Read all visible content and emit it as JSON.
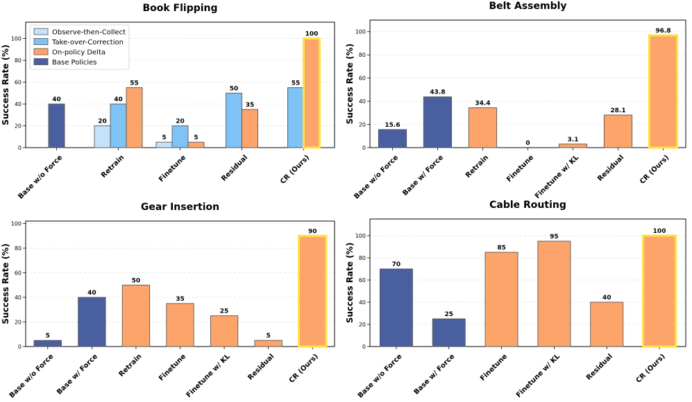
{
  "colors": {
    "base": "#4a5fa0",
    "delta": "#fda46b",
    "takeover": "#7fc3f6",
    "observe": "#c4e2f8",
    "highlight": "#fde241",
    "edge": "#555555",
    "grid": "#dddddd"
  },
  "chart_data": [
    {
      "type": "bar",
      "title": "Book Flipping",
      "ylabel": "Success Rate (%)",
      "ylim": [
        0,
        115
      ],
      "yticks": [
        0,
        20,
        40,
        60,
        80,
        100
      ],
      "grid": "horizontal dashed",
      "legend_placement": "top-left",
      "categories": [
        "Base w/o Force",
        "Retrain",
        "Finetune",
        "Residual",
        "CR (Ours)"
      ],
      "series": [
        {
          "name": "Observe-then-Collect",
          "color_key": "observe",
          "values": [
            null,
            20,
            5,
            null,
            null
          ]
        },
        {
          "name": "Take-over-Correction",
          "color_key": "takeover",
          "values": [
            null,
            40,
            20,
            50,
            55
          ]
        },
        {
          "name": "On-policy Delta",
          "color_key": "delta",
          "values": [
            null,
            55,
            5,
            35,
            100
          ]
        },
        {
          "name": "Base Policies",
          "color_key": "base",
          "values": [
            40,
            null,
            null,
            null,
            null
          ]
        }
      ],
      "data_labels": [
        {
          "category": "Base w/o Force",
          "series": "Base Policies",
          "text": "40"
        },
        {
          "category": "Retrain",
          "series": "Observe-then-Collect",
          "text": "20"
        },
        {
          "category": "Retrain",
          "series": "Take-over-Correction",
          "text": "40"
        },
        {
          "category": "Retrain",
          "series": "On-policy Delta",
          "text": "55"
        },
        {
          "category": "Finetune",
          "series": "Observe-then-Collect",
          "text": "5"
        },
        {
          "category": "Finetune",
          "series": "Take-over-Correction",
          "text": "20"
        },
        {
          "category": "Finetune",
          "series": "On-policy Delta",
          "text": "5"
        },
        {
          "category": "Residual",
          "series": "Take-over-Correction",
          "text": "50"
        },
        {
          "category": "Residual",
          "series": "On-policy Delta",
          "text": "35"
        },
        {
          "category": "CR (Ours)",
          "series": "Take-over-Correction",
          "text": "55"
        },
        {
          "category": "CR (Ours)",
          "series": "On-policy Delta",
          "text": "100"
        }
      ],
      "highlight": {
        "category": "CR (Ours)",
        "series": "On-policy Delta"
      }
    },
    {
      "type": "bar",
      "title": "Belt Assembly",
      "ylabel": "Success Rate (%)",
      "ylim": [
        0,
        110
      ],
      "yticks": [
        0,
        20,
        40,
        60,
        80,
        100
      ],
      "grid": "horizontal dashed",
      "categories": [
        "Base w/o Force",
        "Base w/ Force",
        "Retrain",
        "Finetune",
        "Finetune w/ KL",
        "Residual",
        "CR (Ours)"
      ],
      "values": [
        15.6,
        43.8,
        34.4,
        0,
        3.1,
        28.1,
        96.8
      ],
      "labels": [
        "15.6",
        "43.8",
        "34.4",
        "0",
        "3.1",
        "28.1",
        "96.8"
      ],
      "bar_color_keys": [
        "base",
        "base",
        "delta",
        "delta",
        "delta",
        "delta",
        "delta"
      ],
      "highlight_index": 6
    },
    {
      "type": "bar",
      "title": "Gear Insertion",
      "ylabel": "Success Rate (%)",
      "ylim": [
        0,
        102
      ],
      "yticks": [
        0,
        20,
        40,
        60,
        80,
        100
      ],
      "grid": "horizontal dashed",
      "categories": [
        "Base w/o Force",
        "Base w/ Force",
        "Retrain",
        "Finetune",
        "Finetune w/ KL",
        "Residual",
        "CR (Ours)"
      ],
      "values": [
        5,
        40,
        50,
        35,
        25,
        5,
        90
      ],
      "labels": [
        "5",
        "40",
        "50",
        "35",
        "25",
        "5",
        "90"
      ],
      "bar_color_keys": [
        "base",
        "base",
        "delta",
        "delta",
        "delta",
        "delta",
        "delta"
      ],
      "highlight_index": 6
    },
    {
      "type": "bar",
      "title": "Cable Routing",
      "ylabel": "Success Rate (%)",
      "ylim": [
        0,
        115
      ],
      "yticks": [
        0,
        20,
        40,
        60,
        80,
        100
      ],
      "grid": "horizontal dashed",
      "categories": [
        "Base w/o Force",
        "Base w/ Force",
        "Finetune",
        "Finetune w/ KL",
        "Residual",
        "CR (Ours)"
      ],
      "values": [
        70,
        25,
        85,
        95,
        40,
        100
      ],
      "labels": [
        "70",
        "25",
        "85",
        "95",
        "40",
        "100"
      ],
      "bar_color_keys": [
        "base",
        "base",
        "delta",
        "delta",
        "delta",
        "delta"
      ],
      "highlight_index": 5
    }
  ]
}
